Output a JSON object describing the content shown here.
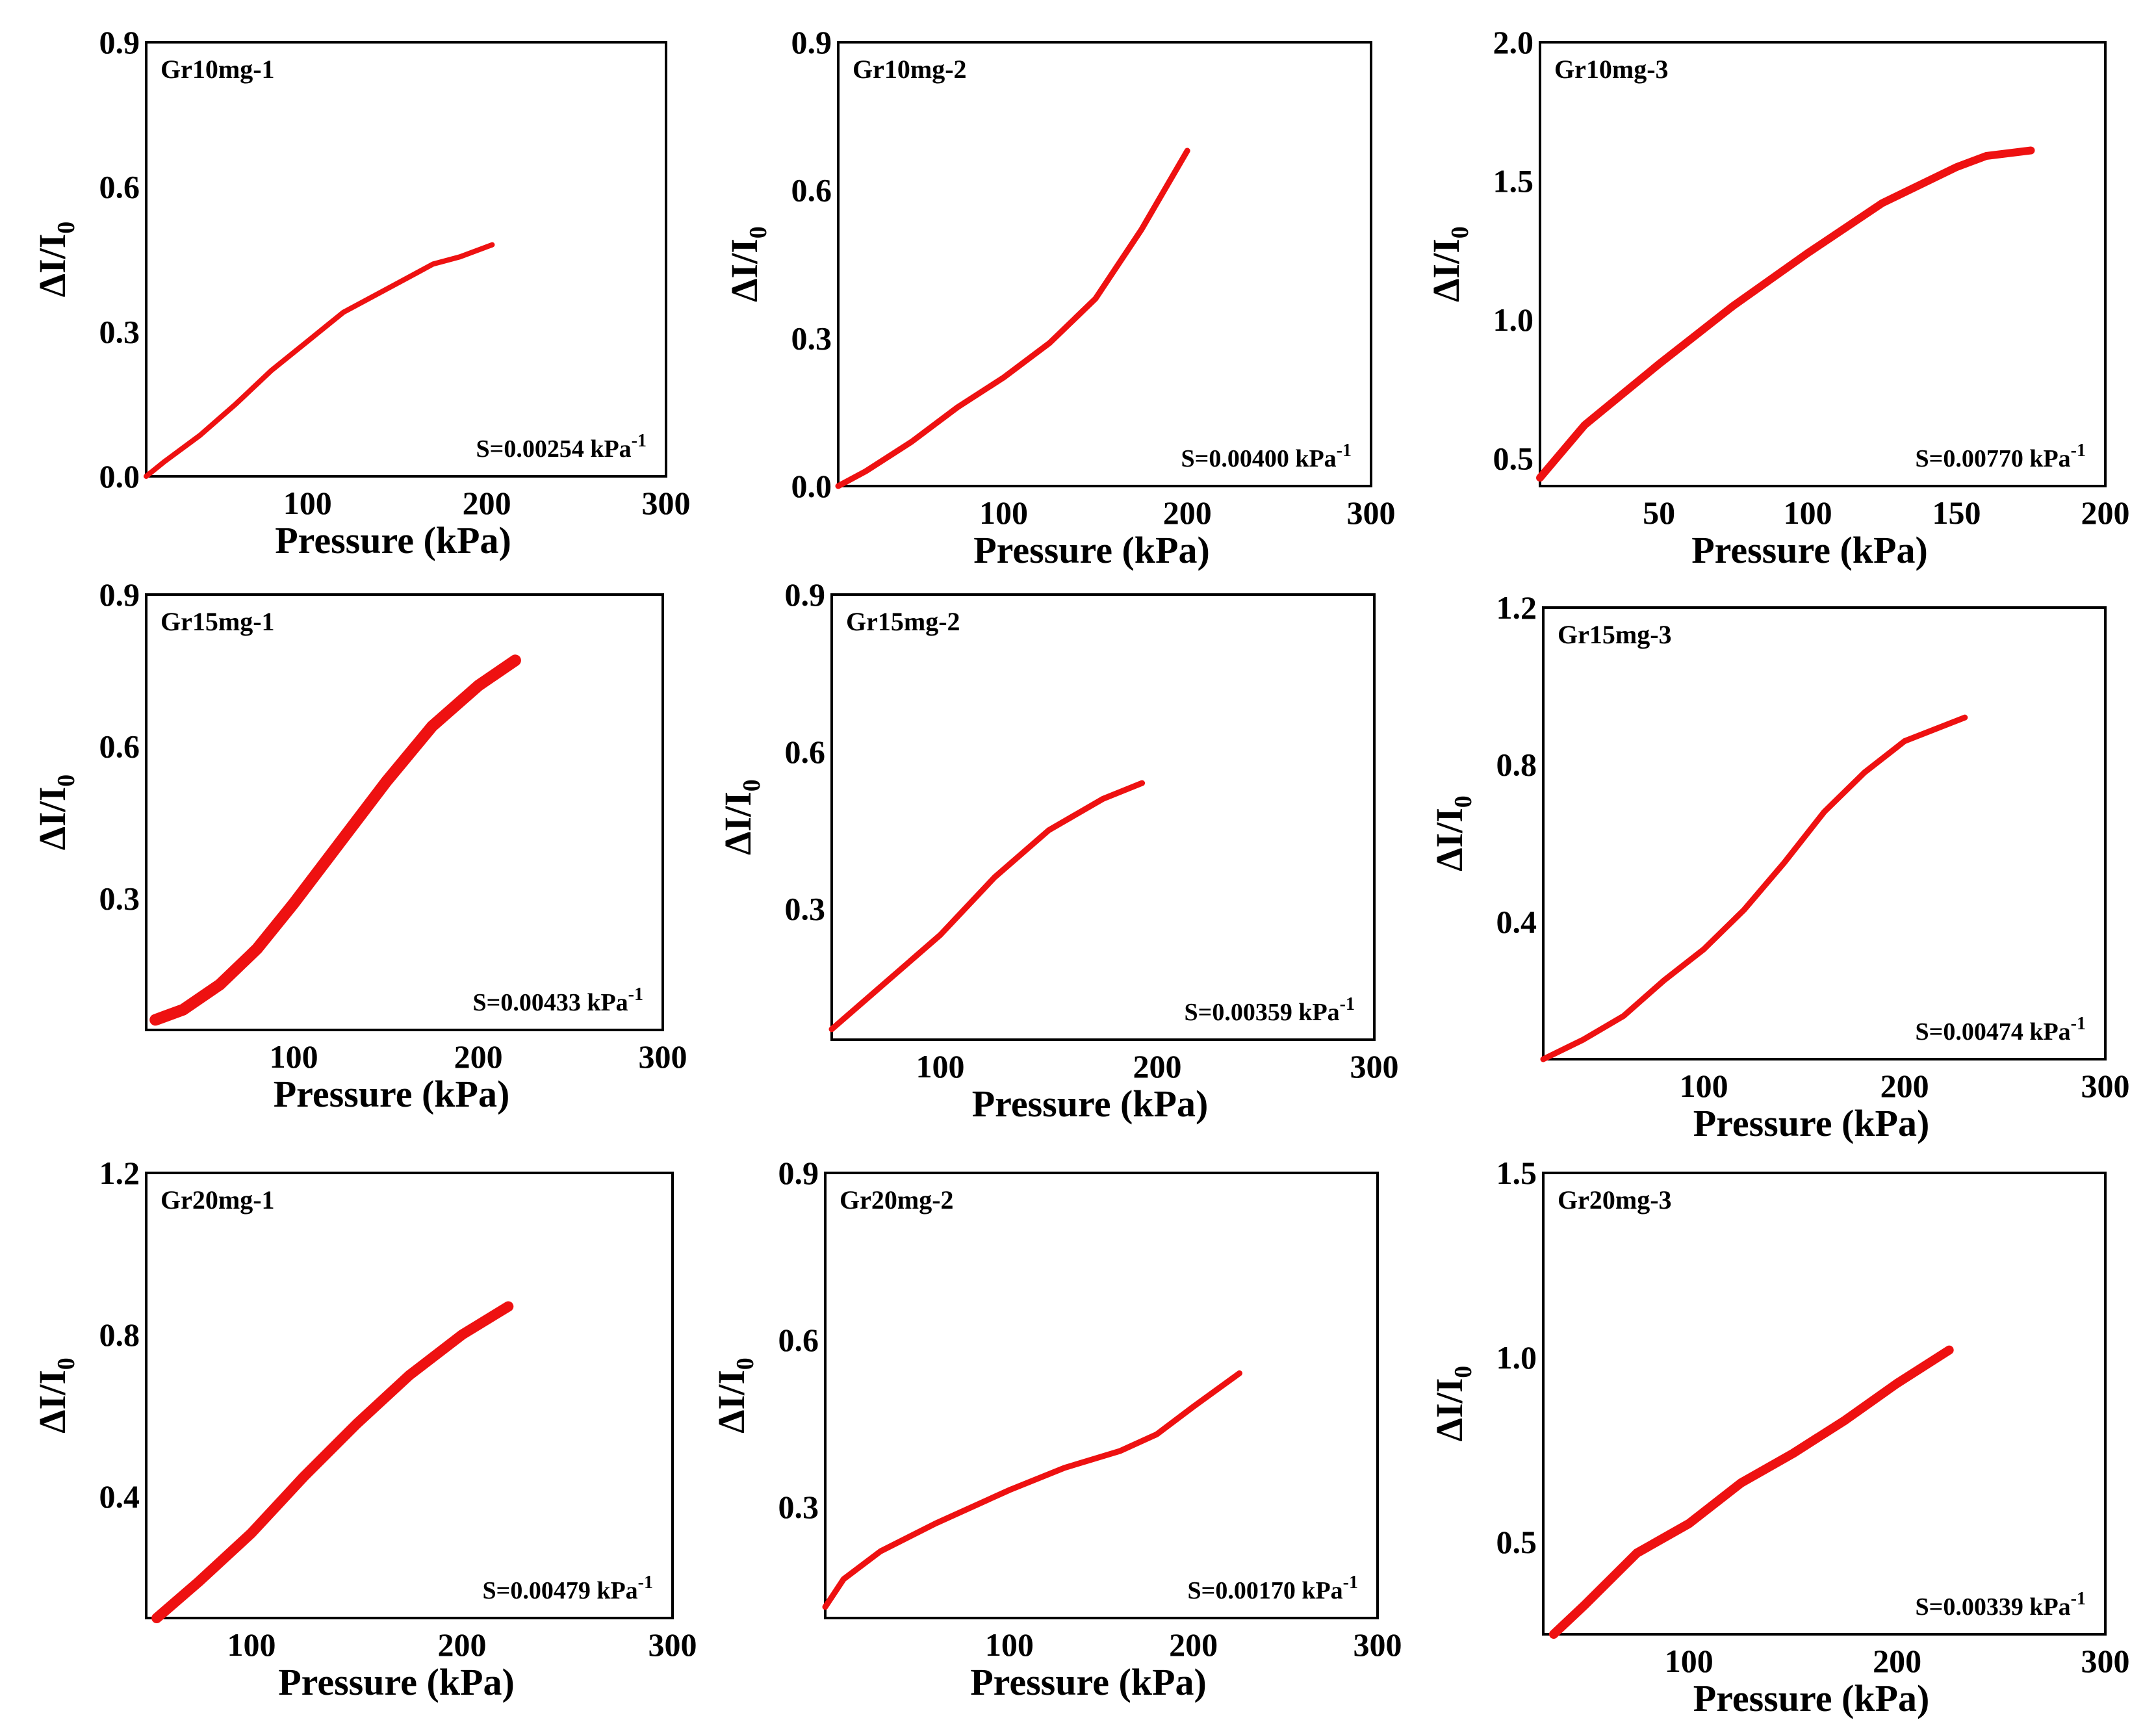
{
  "chart_data": [
    {
      "type": "line",
      "panel": "Gr10mg-1",
      "sensitivity": "S=0.00254 kPa",
      "sensitivity_sup": "-1",
      "xlabel": "Pressure (kPa)",
      "ylabel_main": "ΔI/I",
      "ylabel_sub": "0",
      "xlim": [
        10,
        300
      ],
      "ylim": [
        0,
        0.9
      ],
      "xticks": [
        "100",
        "200",
        "300"
      ],
      "yticks": [
        "0.0",
        "0.3",
        "0.6",
        "0.9"
      ],
      "color": "#ee1111",
      "linewidth": 8,
      "x": [
        10,
        20,
        40,
        60,
        80,
        100,
        120,
        140,
        160,
        170,
        185,
        203
      ],
      "y": [
        0.0,
        0.03,
        0.085,
        0.15,
        0.22,
        0.28,
        0.34,
        0.38,
        0.42,
        0.44,
        0.455,
        0.48
      ]
    },
    {
      "type": "line",
      "panel": "Gr10mg-2",
      "sensitivity": "S=0.00400 kPa",
      "sensitivity_sup": "-1",
      "xlabel": "Pressure (kPa)",
      "ylabel_main": "ΔI/I",
      "ylabel_sub": "0",
      "xlim": [
        10,
        300
      ],
      "ylim": [
        0,
        0.9
      ],
      "xticks": [
        "100",
        "200",
        "300"
      ],
      "yticks": [
        "0.0",
        "0.3",
        "0.6",
        "0.9"
      ],
      "color": "#ee1111",
      "linewidth": 9,
      "x": [
        10,
        25,
        50,
        75,
        100,
        125,
        150,
        175,
        200
      ],
      "y": [
        0.0,
        0.03,
        0.09,
        0.16,
        0.22,
        0.29,
        0.38,
        0.52,
        0.68
      ]
    },
    {
      "type": "line",
      "panel": "Gr10mg-3",
      "sensitivity": "S=0.00770 kPa",
      "sensitivity_sup": "-1",
      "xlabel": "Pressure (kPa)",
      "ylabel_main": "ΔI/I",
      "ylabel_sub": "0",
      "xlim": [
        10,
        200
      ],
      "ylim": [
        0.4,
        2.0
      ],
      "xticks": [
        "50",
        "100",
        "150",
        "200"
      ],
      "yticks": [
        "0.5",
        "1.0",
        "1.5",
        "2.0"
      ],
      "color": "#ee1111",
      "linewidth": 12,
      "x": [
        10,
        25,
        50,
        75,
        100,
        125,
        150,
        160,
        175
      ],
      "y": [
        0.43,
        0.62,
        0.84,
        1.05,
        1.24,
        1.42,
        1.55,
        1.59,
        1.61
      ]
    },
    {
      "type": "line",
      "panel": "Gr15mg-1",
      "sensitivity": "S=0.00433 kPa",
      "sensitivity_sup": "-1",
      "xlabel": "Pressure (kPa)",
      "ylabel_main": "ΔI/I",
      "ylabel_sub": "0",
      "xlim": [
        20,
        300
      ],
      "ylim": [
        0.04,
        0.9
      ],
      "xticks": [
        "100",
        "200",
        "300"
      ],
      "yticks": [
        "0.3",
        "0.6",
        "0.9"
      ],
      "color": "#ee1111",
      "linewidth": 18,
      "x": [
        25,
        40,
        60,
        80,
        100,
        125,
        150,
        175,
        200,
        220
      ],
      "y": [
        0.06,
        0.08,
        0.13,
        0.2,
        0.29,
        0.41,
        0.53,
        0.64,
        0.72,
        0.77
      ]
    },
    {
      "type": "line",
      "panel": "Gr15mg-2",
      "sensitivity": "S=0.00359 kPa",
      "sensitivity_sup": "-1",
      "xlabel": "Pressure (kPa)",
      "ylabel_main": "ΔI/I",
      "ylabel_sub": "0",
      "xlim": [
        50,
        300
      ],
      "ylim": [
        0.05,
        0.9
      ],
      "xticks": [
        "100",
        "200",
        "300"
      ],
      "yticks": [
        "0.3",
        "0.6",
        "0.9"
      ],
      "color": "#ee1111",
      "linewidth": 9,
      "x": [
        50,
        75,
        100,
        125,
        150,
        175,
        193
      ],
      "y": [
        0.07,
        0.16,
        0.25,
        0.36,
        0.45,
        0.51,
        0.54
      ]
    },
    {
      "type": "line",
      "panel": "Gr15mg-3",
      "sensitivity": "S=0.00474 kPa",
      "sensitivity_sup": "-1",
      "xlabel": "Pressure (kPa)",
      "ylabel_main": "ΔI/I",
      "ylabel_sub": "0",
      "xlim": [
        20,
        300
      ],
      "ylim": [
        0.05,
        1.2
      ],
      "xticks": [
        "100",
        "200",
        "300"
      ],
      "yticks": [
        "0.4",
        "0.8",
        "1.2"
      ],
      "color": "#ee1111",
      "linewidth": 9,
      "x": [
        20,
        40,
        60,
        80,
        100,
        120,
        140,
        160,
        180,
        200,
        230
      ],
      "y": [
        0.05,
        0.1,
        0.16,
        0.25,
        0.33,
        0.43,
        0.55,
        0.68,
        0.78,
        0.86,
        0.92
      ]
    },
    {
      "type": "line",
      "panel": "Gr20mg-1",
      "sensitivity": "S=0.00479 kPa",
      "sensitivity_sup": "-1",
      "xlabel": "Pressure (kPa)",
      "ylabel_main": "ΔI/I",
      "ylabel_sub": "0",
      "xlim": [
        50,
        300
      ],
      "ylim": [
        0.1,
        1.2
      ],
      "xticks": [
        "100",
        "200",
        "300"
      ],
      "yticks": [
        "0.4",
        "0.8",
        "1.2"
      ],
      "color": "#ee1111",
      "linewidth": 16,
      "x": [
        55,
        75,
        100,
        125,
        150,
        175,
        200,
        222
      ],
      "y": [
        0.1,
        0.19,
        0.31,
        0.45,
        0.58,
        0.7,
        0.8,
        0.87
      ]
    },
    {
      "type": "line",
      "panel": "Gr20mg-2",
      "sensitivity": "S=0.00170 kPa",
      "sensitivity_sup": "-1",
      "xlabel": "Pressure (kPa)",
      "ylabel_main": "ΔI/I",
      "ylabel_sub": "0",
      "xlim": [
        0,
        300
      ],
      "ylim": [
        0.1,
        0.9
      ],
      "xticks": [
        "100",
        "200",
        "300"
      ],
      "yticks": [
        "0.3",
        "0.6",
        "0.9"
      ],
      "color": "#ee1111",
      "linewidth": 9,
      "x": [
        0,
        10,
        30,
        60,
        100,
        130,
        160,
        180,
        200,
        225
      ],
      "y": [
        0.12,
        0.17,
        0.22,
        0.27,
        0.33,
        0.37,
        0.4,
        0.43,
        0.48,
        0.54
      ]
    },
    {
      "type": "line",
      "panel": "Gr20mg-3",
      "sensitivity": "S=0.00339 kPa",
      "sensitivity_sup": "-1",
      "xlabel": "Pressure (kPa)",
      "ylabel_main": "ΔI/I",
      "ylabel_sub": "0",
      "xlim": [
        30,
        300
      ],
      "ylim": [
        0.25,
        1.5
      ],
      "xticks": [
        "100",
        "200",
        "300"
      ],
      "yticks": [
        "0.5",
        "1.0",
        "1.5"
      ],
      "color": "#ee1111",
      "linewidth": 14,
      "x": [
        35,
        50,
        75,
        100,
        125,
        150,
        175,
        200,
        225
      ],
      "y": [
        0.25,
        0.33,
        0.47,
        0.55,
        0.66,
        0.74,
        0.83,
        0.93,
        1.02
      ]
    }
  ]
}
